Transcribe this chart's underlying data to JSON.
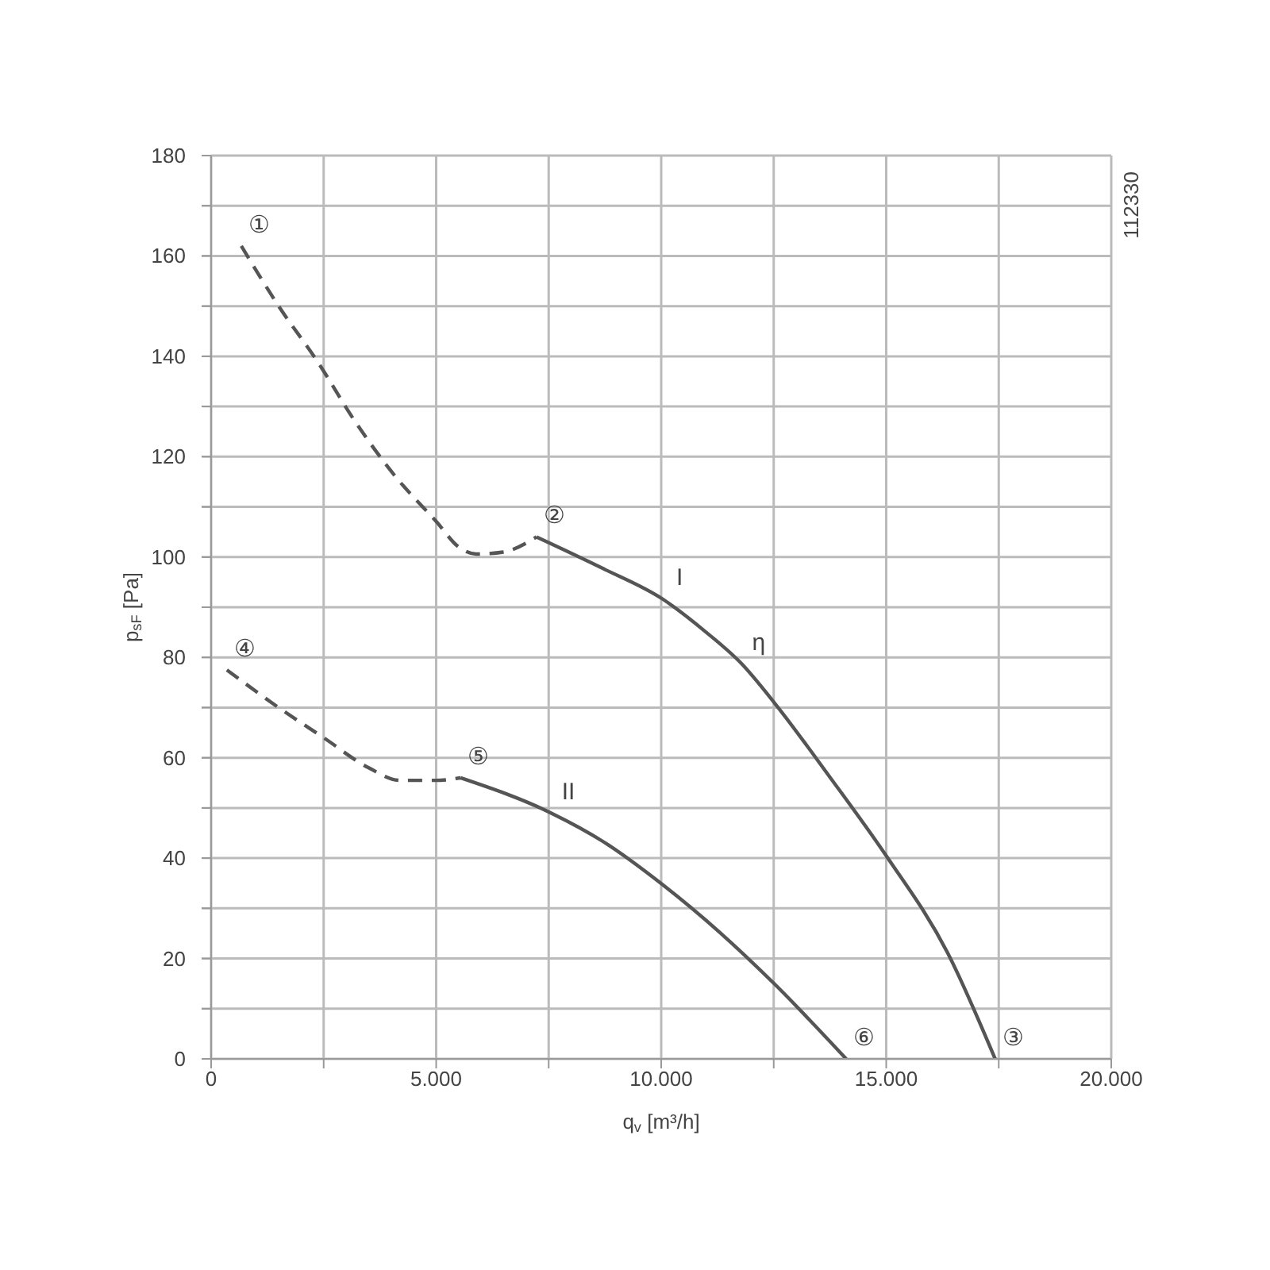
{
  "chart_data": {
    "type": "line",
    "xlabel": "q$_{v}$ [m³/h]",
    "ylabel": "p$_{sF}$ [Pa]",
    "xlim": [
      0,
      20000
    ],
    "ylim": [
      0,
      180
    ],
    "xticks": [
      {
        "value": 0,
        "label": "0"
      },
      {
        "value": 2500,
        "label": null
      },
      {
        "value": 5000,
        "label": "5.000"
      },
      {
        "value": 7500,
        "label": null
      },
      {
        "value": 10000,
        "label": "10.000"
      },
      {
        "value": 12500,
        "label": null
      },
      {
        "value": 15000,
        "label": "15.000"
      },
      {
        "value": 17500,
        "label": null
      },
      {
        "value": 20000,
        "label": "20.000"
      }
    ],
    "yticks": [
      0,
      {
        "value": 10,
        "label": null
      },
      20,
      {
        "value": 30,
        "label": null
      },
      40,
      {
        "value": 50,
        "label": null
      },
      60,
      {
        "value": 70,
        "label": null
      },
      80,
      {
        "value": 90,
        "label": null
      },
      100,
      {
        "value": 110,
        "label": null
      },
      120,
      {
        "value": 130,
        "label": null
      },
      140,
      {
        "value": 150,
        "label": null
      },
      160,
      {
        "value": 170,
        "label": null
      },
      180
    ],
    "grid": true,
    "marker": "none",
    "series": [
      {
        "color": "#555555",
        "line_style": "dashed",
        "x": [
          670,
          1500,
          2360,
          3200,
          4100,
          5010,
          5500,
          5890,
          6490,
          7230
        ],
        "values": [
          162,
          150,
          139,
          127,
          116,
          107,
          102,
          100.6,
          101,
          104
        ]
      },
      {
        "color": "#555555",
        "line_style": "solid",
        "x": [
          7230,
          8710,
          10020,
          11000,
          11780,
          12520,
          13760,
          15020,
          16360,
          17420
        ],
        "values": [
          104,
          97.7,
          91.7,
          85,
          78.8,
          70.9,
          56,
          40.2,
          21.2,
          0
        ]
      },
      {
        "color": "#555555",
        "line_style": "dashed",
        "x": [
          350,
          1500,
          2500,
          3500,
          4200,
          5000,
          5540
        ],
        "values": [
          77.5,
          70,
          64,
          58,
          55.5,
          55.5,
          56
        ]
      },
      {
        "color": "#555555",
        "line_style": "solid",
        "x": [
          5540,
          7550,
          8710,
          10020,
          11290,
          12520,
          14110
        ],
        "values": [
          56,
          49,
          43.3,
          34.8,
          25.3,
          14.9,
          0
        ]
      }
    ],
    "annotations": [
      {
        "text": "①",
        "x": 670,
        "y": 162
      },
      {
        "text": "②",
        "x": 7230,
        "y": 104
      },
      {
        "text": "③",
        "x": 17420,
        "y": 0
      },
      {
        "text": "④",
        "x": 350,
        "y": 77.5
      },
      {
        "text": "⑤",
        "x": 5540,
        "y": 56
      },
      {
        "text": "⑥",
        "x": 14110,
        "y": 0
      },
      {
        "text": "I",
        "x": 10020,
        "y": 91.7
      },
      {
        "text": "II",
        "x": 7550,
        "y": 49
      },
      {
        "text": "η",
        "x": 11780,
        "y": 78.8
      },
      "112330"
    ]
  }
}
